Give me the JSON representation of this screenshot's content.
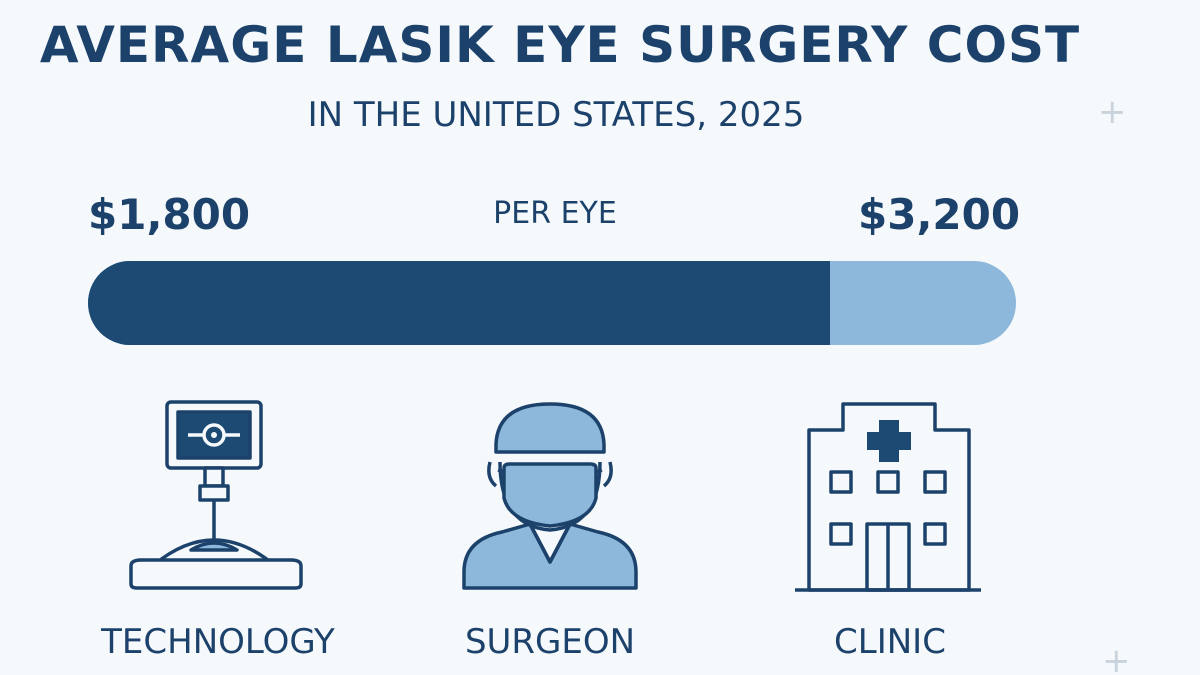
{
  "header": {
    "title": "AVERAGE LASIK EYE SURGERY COST",
    "subtitle": "IN THE UNITED STATES, 2025"
  },
  "price_range": {
    "low": "$1,800",
    "high": "$3,200",
    "unit": "PER EYE",
    "bar_fill_fraction": 0.8
  },
  "factors": [
    {
      "label": "TECHNOLOGY",
      "icon": "laser-machine-icon"
    },
    {
      "label": "SURGEON",
      "icon": "surgeon-icon"
    },
    {
      "label": "CLINIC",
      "icon": "clinic-building-icon"
    }
  ],
  "colors": {
    "dark_navy": "#1c4a72",
    "light_blue": "#8db8db",
    "background": "#f5f9fc",
    "text": "#1c426b"
  }
}
